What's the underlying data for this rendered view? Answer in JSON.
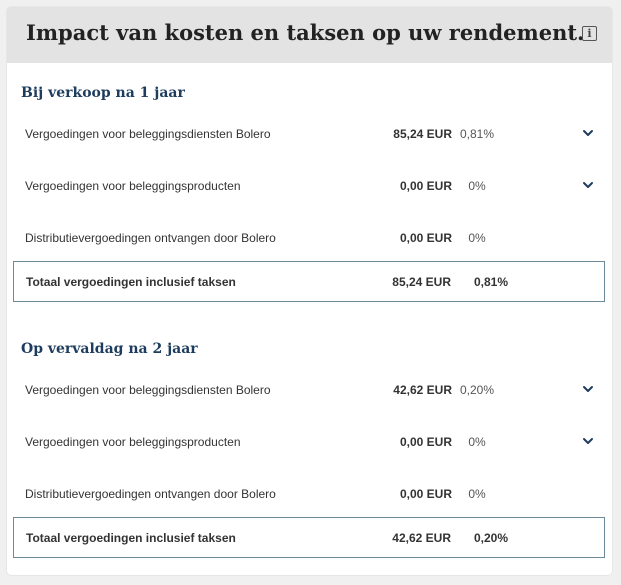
{
  "header": {
    "title": "Impact van kosten en taksen op uw rendement.",
    "info_icon": "info-icon"
  },
  "sections": [
    {
      "title": "Bij verkoop na 1 jaar",
      "rows": [
        {
          "label": "Vergoedingen voor beleggingsdiensten Bolero",
          "amount": "85,24 EUR",
          "pct": "0,81%",
          "expandable": true
        },
        {
          "label": "Vergoedingen voor beleggingsproducten",
          "amount": "0,00 EUR",
          "pct": "0%",
          "expandable": true
        },
        {
          "label": "Distributievergoedingen ontvangen door Bolero",
          "amount": "0,00 EUR",
          "pct": "0%",
          "expandable": false
        }
      ],
      "total": {
        "label": "Totaal vergoedingen inclusief taksen",
        "amount": "85,24 EUR",
        "pct": "0,81%"
      }
    },
    {
      "title": "Op vervaldag na 2 jaar",
      "rows": [
        {
          "label": "Vergoedingen voor beleggingsdiensten Bolero",
          "amount": "42,62 EUR",
          "pct": "0,20%",
          "expandable": true
        },
        {
          "label": "Vergoedingen voor beleggingsproducten",
          "amount": "0,00 EUR",
          "pct": "0%",
          "expandable": true
        },
        {
          "label": "Distributievergoedingen ontvangen door Bolero",
          "amount": "0,00 EUR",
          "pct": "0%",
          "expandable": false
        }
      ],
      "total": {
        "label": "Totaal vergoedingen inclusief taksen",
        "amount": "42,62 EUR",
        "pct": "0,20%"
      }
    }
  ],
  "colors": {
    "section_title": "#1d3c5e",
    "chevron": "#1d3c5e",
    "total_border": "#6d8a9a",
    "header_bg": "#e3e3e3"
  }
}
